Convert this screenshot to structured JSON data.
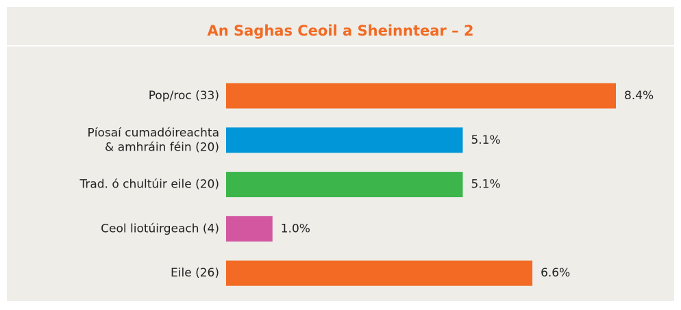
{
  "chart_data": {
    "type": "bar",
    "orientation": "horizontal",
    "title": "An Saghas Ceoil a Sheinntear – 2",
    "categories": [
      "Pop/roc (33)",
      [
        "Píosaí cumadóireachta",
        "& amhráin féin (20)"
      ],
      "Trad. ó chultúir eile (20)",
      "Ceol liotúirgeach (4)",
      "Eile (26)"
    ],
    "values": [
      8.4,
      5.1,
      5.1,
      1.0,
      6.6
    ],
    "value_labels": [
      "8.4%",
      "5.1%",
      "5.1%",
      "1.0%",
      "6.6%"
    ],
    "colors": [
      "#f26a23",
      "#0096d8",
      "#3cb54a",
      "#d257a0",
      "#f26a23"
    ]
  }
}
